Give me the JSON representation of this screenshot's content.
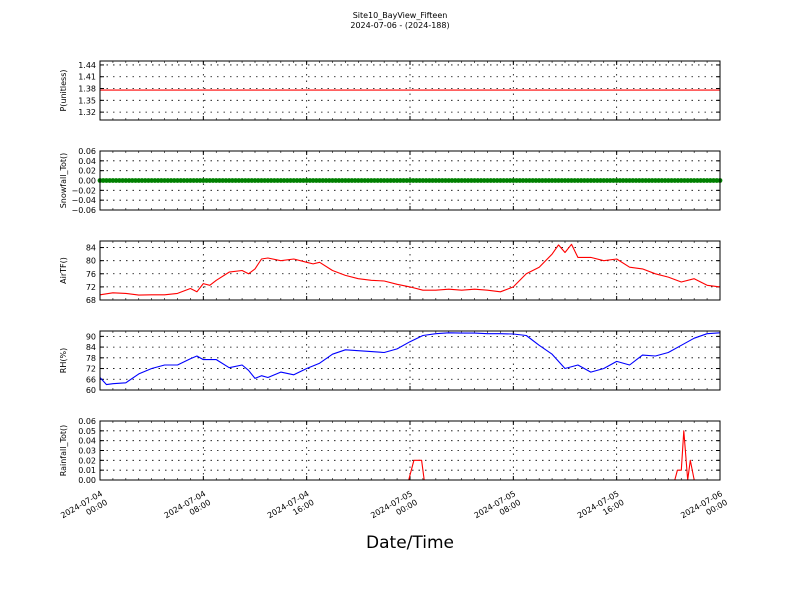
{
  "title": "Site10_BayView_Fifteen",
  "subtitle": "2024-07-06 - (2024-188)",
  "xlabel": "Date/Time",
  "chart_data": [
    {
      "type": "line",
      "ylabel": "P(unitless)",
      "ylim": [
        1.3,
        1.45
      ],
      "yticks": [
        "1.44",
        "1.41",
        "1.38",
        "1.35",
        "1.32"
      ],
      "ytick_values": [
        1.44,
        1.41,
        1.38,
        1.35,
        1.32
      ],
      "color": "#ff0000",
      "grid": true,
      "x": [
        0,
        48
      ],
      "values": [
        1.376,
        1.376
      ]
    },
    {
      "type": "scatter",
      "ylabel": "Snowfall_Tot()",
      "ylim": [
        -0.06,
        0.06
      ],
      "yticks": [
        "0.06",
        "0.04",
        "0.02",
        "0.00",
        "−0.02",
        "−0.04",
        "−0.06"
      ],
      "ytick_values": [
        0.06,
        0.04,
        0.02,
        0.0,
        -0.02,
        -0.04,
        -0.06
      ],
      "color": "#008000",
      "grid": true,
      "x": [
        0,
        48
      ],
      "values": [
        0,
        0
      ]
    },
    {
      "type": "line",
      "ylabel": "AirTF()",
      "ylim": [
        68,
        86
      ],
      "yticks": [
        "84",
        "80",
        "76",
        "72",
        "68"
      ],
      "ytick_values": [
        84,
        80,
        76,
        72,
        68
      ],
      "color": "#ff0000",
      "grid": true,
      "x": [
        0,
        1,
        2,
        3,
        4,
        5,
        6,
        7,
        7.5,
        8,
        8.5,
        9,
        10,
        11,
        11.5,
        12,
        12.5,
        13,
        14,
        15,
        16,
        16.5,
        17,
        18,
        19,
        20,
        21,
        22,
        23,
        24,
        25,
        26,
        27,
        28,
        29,
        30,
        31,
        32,
        33,
        34,
        35,
        35.5,
        36,
        36.5,
        37,
        38,
        39,
        40,
        41,
        42,
        43,
        44,
        45,
        46,
        47,
        48
      ],
      "values": [
        69.6,
        70.2,
        70.0,
        69.5,
        69.6,
        69.6,
        70.0,
        71.5,
        70.5,
        73.0,
        72.5,
        74.0,
        76.5,
        77.0,
        76.0,
        77.5,
        80.5,
        80.8,
        80.0,
        80.5,
        79.5,
        79.0,
        79.5,
        77.0,
        75.5,
        74.5,
        74.0,
        73.8,
        72.8,
        72.0,
        71.0,
        71.0,
        71.3,
        71.0,
        71.3,
        71.0,
        70.5,
        72.0,
        76.0,
        78.0,
        82.0,
        84.8,
        82.5,
        85.0,
        81.0,
        81.0,
        80.0,
        80.5,
        78.0,
        77.5,
        76.0,
        75.0,
        73.5,
        74.5,
        72.5,
        72.0
      ]
    },
    {
      "type": "line",
      "ylabel": "RH(%)",
      "ylim": [
        60,
        93
      ],
      "yticks": [
        "90",
        "84",
        "78",
        "72",
        "66",
        "60"
      ],
      "ytick_values": [
        90,
        84,
        78,
        72,
        66,
        60
      ],
      "color": "#0000ff",
      "grid": true,
      "x": [
        0,
        0.5,
        1,
        2,
        3,
        4,
        5,
        6,
        7,
        7.5,
        8,
        9,
        10,
        11,
        11.5,
        12,
        12.5,
        13,
        14,
        15,
        16,
        17,
        18,
        19,
        20,
        21,
        22,
        23,
        24,
        25,
        26,
        27,
        28,
        29,
        30,
        31,
        32,
        33,
        34,
        35,
        36,
        37,
        38,
        39,
        40,
        41,
        42,
        43,
        44,
        45,
        46,
        47,
        48
      ],
      "values": [
        67,
        63,
        63.5,
        64,
        69,
        72,
        74,
        74,
        77.5,
        79,
        77,
        77,
        72.5,
        74,
        71,
        66.5,
        68,
        67,
        70,
        68.5,
        72,
        75,
        80,
        82.5,
        82,
        81.5,
        81,
        83,
        87,
        90.5,
        91.5,
        92.0,
        91.8,
        91.8,
        91.5,
        91.5,
        91.3,
        90.5,
        85,
        80,
        72,
        74,
        70,
        72,
        76,
        74,
        79.5,
        79,
        81,
        85,
        89,
        91.5,
        92
      ]
    },
    {
      "type": "line",
      "ylabel": "Rainfall_Tot()",
      "ylim": [
        0,
        0.06
      ],
      "yticks": [
        "0.06",
        "0.05",
        "0.04",
        "0.03",
        "0.02",
        "0.01",
        "0.00"
      ],
      "ytick_values": [
        0.06,
        0.05,
        0.04,
        0.03,
        0.02,
        0.01,
        0.0
      ],
      "color": "#ff0000",
      "grid": true,
      "x": [
        0,
        23.9,
        24.3,
        24.6,
        24.9,
        25.1,
        25.2,
        44.5,
        44.7,
        45.0,
        45.2,
        45.5,
        45.7,
        46.0,
        48
      ],
      "values": [
        0,
        0,
        0.02,
        0.02,
        0.02,
        0,
        0,
        0,
        0.01,
        0.01,
        0.05,
        0,
        0.02,
        0,
        0
      ]
    }
  ],
  "xaxis": {
    "range_hours": [
      0,
      48
    ],
    "ticks": [
      {
        "hours": 0,
        "line1": "2024-07-04",
        "line2": "00:00"
      },
      {
        "hours": 8,
        "line1": "2024-07-04",
        "line2": "08:00"
      },
      {
        "hours": 16,
        "line1": "2024-07-04",
        "line2": "16:00"
      },
      {
        "hours": 24,
        "line1": "2024-07-05",
        "line2": "00:00"
      },
      {
        "hours": 32,
        "line1": "2024-07-05",
        "line2": "08:00"
      },
      {
        "hours": 40,
        "line1": "2024-07-05",
        "line2": "16:00"
      },
      {
        "hours": 48,
        "line1": "2024-07-06",
        "line2": "00:00"
      }
    ]
  }
}
